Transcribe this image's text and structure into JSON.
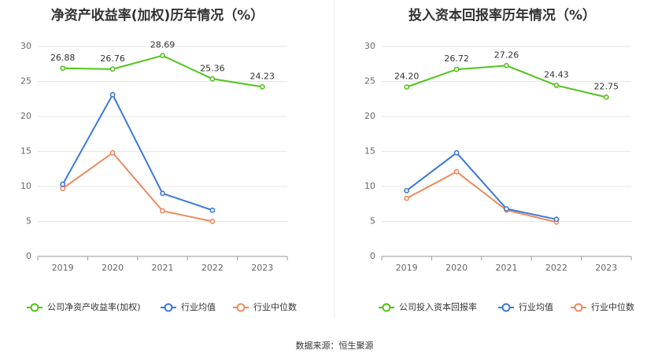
{
  "source_text": "数据来源：恒生聚源",
  "colors": {
    "company": "#52c41a",
    "industry_avg": "#3c78d8",
    "industry_median": "#ee8a5e",
    "axis": "#999999",
    "grid": "#e6e6e6"
  },
  "chart_data": [
    {
      "type": "line",
      "title": "净资产收益率(加权)历年情况（%）",
      "categories": [
        "2019",
        "2020",
        "2021",
        "2022",
        "2023"
      ],
      "ylim": [
        0,
        30
      ],
      "yticks": [
        0,
        5,
        10,
        15,
        20,
        25,
        30
      ],
      "grid": true,
      "legend_position": "bottom-left",
      "series": [
        {
          "name": "公司净资产收益率(加权)",
          "values": [
            26.88,
            26.76,
            28.69,
            25.36,
            24.23
          ],
          "labels": [
            "26.88",
            "26.76",
            "28.69",
            "25.36",
            "24.23"
          ],
          "color": "#52c41a"
        },
        {
          "name": "行业均值",
          "values": [
            10.3,
            23.1,
            9.0,
            6.6,
            null
          ],
          "color": "#3c78d8"
        },
        {
          "name": "行业中位数",
          "values": [
            9.7,
            14.8,
            6.5,
            5.0,
            null
          ],
          "color": "#ee8a5e"
        }
      ]
    },
    {
      "type": "line",
      "title": "投入资本回报率历年情况（%）",
      "categories": [
        "2019",
        "2020",
        "2021",
        "2022",
        "2023"
      ],
      "ylim": [
        0,
        30
      ],
      "yticks": [
        0,
        5,
        10,
        15,
        20,
        25,
        30
      ],
      "grid": true,
      "legend_position": "bottom-left",
      "series": [
        {
          "name": "公司投入资本回报率",
          "values": [
            24.2,
            26.72,
            27.26,
            24.43,
            22.75
          ],
          "labels": [
            "24.20",
            "26.72",
            "27.26",
            "24.43",
            "22.75"
          ],
          "color": "#52c41a"
        },
        {
          "name": "行业均值",
          "values": [
            9.4,
            14.8,
            6.8,
            5.3,
            null
          ],
          "color": "#3c78d8"
        },
        {
          "name": "行业中位数",
          "values": [
            8.3,
            12.1,
            6.6,
            4.9,
            null
          ],
          "color": "#ee8a5e"
        }
      ]
    }
  ]
}
